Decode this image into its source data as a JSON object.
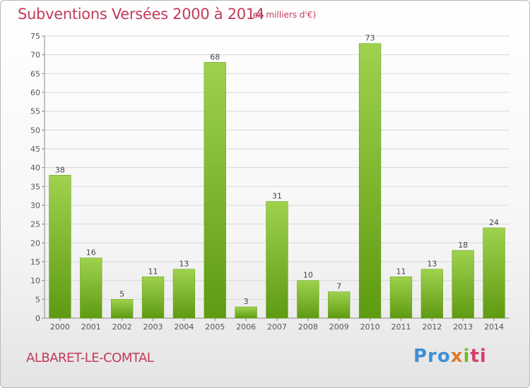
{
  "header": {
    "title": "Subventions Versées 2000 à 2014",
    "subtitle": "(en milliers d'€)"
  },
  "footer": {
    "commune": "ALBARET-LE-COMTAL",
    "logo": [
      "Pro",
      "x",
      "i",
      "ti"
    ]
  },
  "colors": {
    "title": "#c23a5a",
    "bar_top": "#9fd24e",
    "bar_bottom": "#5e9a12"
  },
  "chart_data": {
    "type": "bar",
    "title": "Subventions Versées 2000 à 2014",
    "subtitle": "(en milliers d'€)",
    "categories": [
      "2000",
      "2001",
      "2002",
      "2003",
      "2004",
      "2005",
      "2006",
      "2007",
      "2008",
      "2009",
      "2010",
      "2011",
      "2012",
      "2013",
      "2014"
    ],
    "values": [
      38,
      16,
      5,
      11,
      13,
      68,
      3,
      31,
      10,
      7,
      73,
      11,
      13,
      18,
      24
    ],
    "ylim": [
      0,
      75
    ],
    "yticks": [
      0,
      5,
      10,
      15,
      20,
      25,
      30,
      35,
      40,
      45,
      50,
      55,
      60,
      65,
      70,
      75
    ],
    "grid": true,
    "xlabel": "",
    "ylabel": ""
  }
}
